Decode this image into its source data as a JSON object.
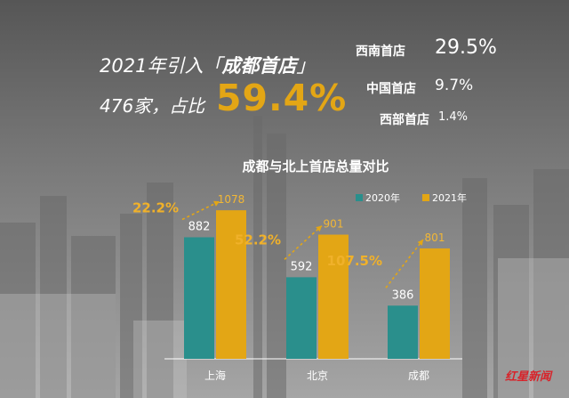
{
  "headline": {
    "line1_prefix": "2021年引入「",
    "line1_bold": "成都首店",
    "line1_suffix": "」",
    "line2": "476家，占比",
    "big_percent": "59.4%"
  },
  "side_stats": [
    {
      "label": "西南首店",
      "value": "29.5%"
    },
    {
      "label": "中国首店",
      "value": "9.7%"
    },
    {
      "label": "西部首店",
      "value": "1.4%"
    }
  ],
  "colors": {
    "teal": "#2a8f8c",
    "gold": "#e3a615",
    "growth": "#e8a317",
    "bg_top": "#5e5e5e",
    "bg_bottom": "#9a9a9a"
  },
  "chart_data": {
    "type": "bar",
    "title": "成都与北上首店总量对比",
    "categories": [
      "上海",
      "北京",
      "成都"
    ],
    "series": [
      {
        "name": "2020年",
        "values": [
          882,
          592,
          386
        ],
        "color": "#2a8f8c"
      },
      {
        "name": "2021年",
        "values": [
          1078,
          901,
          801
        ],
        "color": "#e3a615"
      }
    ],
    "growth_labels": [
      "22.2%",
      "52.2%",
      "107.5%"
    ],
    "ylim": [
      0,
      1150
    ],
    "grid": false,
    "legend": "top-right"
  },
  "watermark": "红星新闻"
}
